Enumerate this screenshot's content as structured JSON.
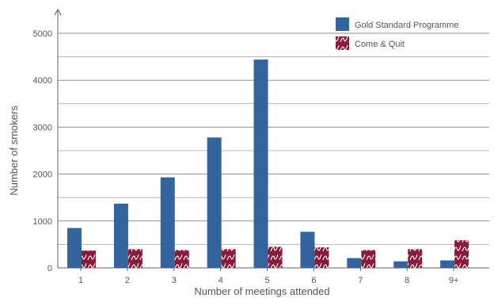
{
  "chart_data": {
    "type": "bar",
    "xlabel": "Number of meetings attended",
    "ylabel": "Number of smokers",
    "categories": [
      "1",
      "2",
      "3",
      "4",
      "5",
      "6",
      "7",
      "8",
      "9+"
    ],
    "ylim": [
      0,
      5000
    ],
    "yticks": [
      "0",
      "1000",
      "2000",
      "3000",
      "4000",
      "5000"
    ],
    "grid": true,
    "legend_position": "top-right",
    "series": [
      {
        "name": "Gold Standard Programme",
        "color": "#34649e",
        "pattern": "solid",
        "values": [
          850,
          1370,
          1930,
          2780,
          4440,
          770,
          210,
          140,
          160
        ]
      },
      {
        "name": "Come & Quit",
        "color": "#8a1a3a",
        "pattern": "squiggle",
        "values": [
          370,
          400,
          380,
          400,
          450,
          440,
          380,
          400,
          590
        ]
      }
    ]
  }
}
